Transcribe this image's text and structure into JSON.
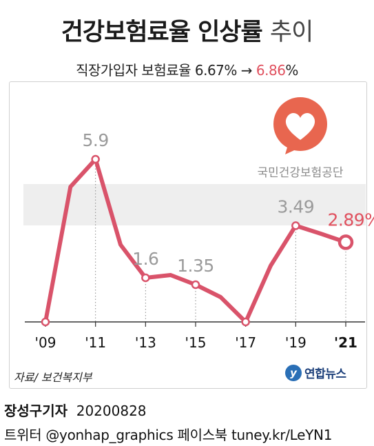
{
  "header": {
    "title_main": "건강보험료율 인상률",
    "title_rest": "추이",
    "subtitle_prefix": "직장가입자 보험료율 6.67% → ",
    "subtitle_highlight": "6.86",
    "subtitle_suffix": "%"
  },
  "logo_nhis": {
    "name": "국민건강보험공단",
    "icon": "heart-speech-bubble-icon",
    "color": "#e8664f"
  },
  "footer": {
    "source": "자료/ 보건복지부",
    "agency": "연합뉴스",
    "agency_icon": "yonhap-logo-icon",
    "reporter": "장성구기자",
    "date": "20200828",
    "social": "트위터 @yonhap_graphics  페이스북 tuney.kr/LeYN1"
  },
  "colors": {
    "line": "#d9536a",
    "highlight": "#e0505e",
    "label_gray": "#9a9a9a",
    "band": "#eeeeee"
  },
  "chart_data": {
    "type": "line",
    "title": "건강보험료율 인상률 추이",
    "x": [
      "2009",
      "2010",
      "2011",
      "2012",
      "2013",
      "2014",
      "2015",
      "2016",
      "2017",
      "2018",
      "2019",
      "2020",
      "2021"
    ],
    "series": [
      {
        "values": [
          0,
          4.9,
          5.9,
          2.8,
          1.6,
          1.7,
          1.35,
          0.9,
          0,
          2.04,
          3.49,
          3.2,
          2.89
        ]
      }
    ],
    "tick_labels": [
      "'09",
      "'11",
      "'13",
      "'15",
      "'17",
      "'19",
      "'21"
    ],
    "tick_years": [
      "2009",
      "2011",
      "2013",
      "2015",
      "2017",
      "2019",
      "2021"
    ],
    "data_labels": [
      {
        "x": "2011",
        "text": "5.9"
      },
      {
        "x": "2013",
        "text": "1.6"
      },
      {
        "x": "2015",
        "text": "1.35"
      },
      {
        "x": "2019",
        "text": "3.49"
      },
      {
        "x": "2021",
        "text": "2.89%"
      }
    ],
    "ylim": [
      0,
      6
    ],
    "grid": false
  }
}
